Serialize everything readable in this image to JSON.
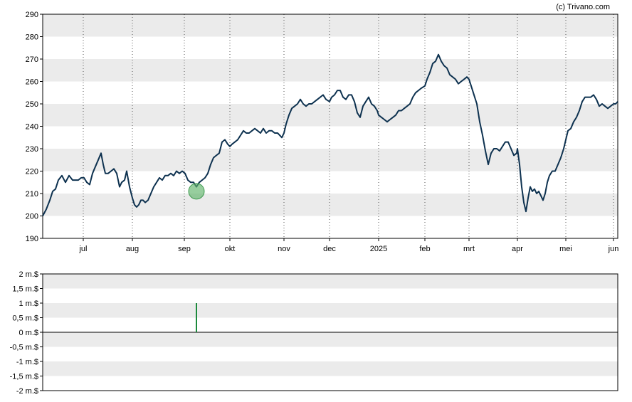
{
  "credit": "(c) Trivano.com",
  "colors": {
    "band": "#ebebeb",
    "price_line": "#0e3250",
    "marker_fill": "#5fb36a",
    "volume_bar": "#1c8a3c",
    "axis": "#000000",
    "vgrid": "#555555"
  },
  "chart_data": [
    {
      "type": "line",
      "title": "",
      "ylim": [
        190,
        290
      ],
      "y_ticks": [
        190,
        200,
        210,
        220,
        230,
        240,
        250,
        260,
        270,
        280,
        290
      ],
      "x_ticks": [
        {
          "label": "jul",
          "t": 57
        },
        {
          "label": "aug",
          "t": 126
        },
        {
          "label": "sep",
          "t": 199
        },
        {
          "label": "okt",
          "t": 263
        },
        {
          "label": "nov",
          "t": 339
        },
        {
          "label": "dec",
          "t": 403
        },
        {
          "label": "2025",
          "t": 472
        },
        {
          "label": "feb",
          "t": 537
        },
        {
          "label": "mrt",
          "t": 599
        },
        {
          "label": "apr",
          "t": 667
        },
        {
          "label": "mei",
          "t": 735
        },
        {
          "label": "jun",
          "t": 802
        }
      ],
      "xlim": [
        0,
        808
      ],
      "grid": true,
      "marker": {
        "t": 216,
        "value": 211
      },
      "series": [
        {
          "points": [
            [
              0,
              200
            ],
            [
              5,
              203
            ],
            [
              10,
              207
            ],
            [
              14,
              211
            ],
            [
              18,
              212
            ],
            [
              22,
              216
            ],
            [
              27,
              218
            ],
            [
              32,
              215
            ],
            [
              37,
              218
            ],
            [
              42,
              216
            ],
            [
              46,
              216
            ],
            [
              50,
              216
            ],
            [
              54,
              217
            ],
            [
              58,
              217
            ],
            [
              62,
              215
            ],
            [
              66,
              214
            ],
            [
              70,
              219
            ],
            [
              74,
              222
            ],
            [
              78,
              225
            ],
            [
              82,
              228
            ],
            [
              85,
              223
            ],
            [
              88,
              219
            ],
            [
              92,
              219
            ],
            [
              96,
              220
            ],
            [
              100,
              221
            ],
            [
              104,
              219
            ],
            [
              108,
              213
            ],
            [
              111,
              215
            ],
            [
              115,
              216
            ],
            [
              118,
              220
            ],
            [
              122,
              213
            ],
            [
              126,
              208
            ],
            [
              129,
              205
            ],
            [
              132,
              204
            ],
            [
              135,
              205
            ],
            [
              138,
              207
            ],
            [
              141,
              207
            ],
            [
              144,
              206
            ],
            [
              148,
              207
            ],
            [
              152,
              210
            ],
            [
              156,
              213
            ],
            [
              160,
              215
            ],
            [
              164,
              217
            ],
            [
              168,
              216
            ],
            [
              172,
              218
            ],
            [
              176,
              218
            ],
            [
              180,
              219
            ],
            [
              184,
              218
            ],
            [
              188,
              220
            ],
            [
              192,
              219
            ],
            [
              196,
              220
            ],
            [
              200,
              219
            ],
            [
              204,
              216
            ],
            [
              208,
              215
            ],
            [
              212,
              215
            ],
            [
              216,
              213
            ],
            [
              220,
              215
            ],
            [
              224,
              216
            ],
            [
              228,
              217
            ],
            [
              232,
              219
            ],
            [
              236,
              223
            ],
            [
              240,
              226
            ],
            [
              244,
              227
            ],
            [
              248,
              228
            ],
            [
              252,
              233
            ],
            [
              256,
              234
            ],
            [
              260,
              232
            ],
            [
              263,
              231
            ],
            [
              266,
              232
            ],
            [
              270,
              233
            ],
            [
              274,
              234
            ],
            [
              278,
              236
            ],
            [
              282,
              238
            ],
            [
              286,
              237
            ],
            [
              290,
              237
            ],
            [
              294,
              238
            ],
            [
              298,
              239
            ],
            [
              302,
              238
            ],
            [
              306,
              237
            ],
            [
              310,
              239
            ],
            [
              314,
              237
            ],
            [
              318,
              238
            ],
            [
              322,
              238
            ],
            [
              326,
              237
            ],
            [
              330,
              237
            ],
            [
              333,
              236
            ],
            [
              336,
              235
            ],
            [
              339,
              237
            ],
            [
              342,
              241
            ],
            [
              346,
              245
            ],
            [
              350,
              248
            ],
            [
              354,
              249
            ],
            [
              358,
              250
            ],
            [
              362,
              252
            ],
            [
              366,
              250
            ],
            [
              370,
              249
            ],
            [
              374,
              250
            ],
            [
              378,
              250
            ],
            [
              382,
              251
            ],
            [
              386,
              252
            ],
            [
              390,
              253
            ],
            [
              394,
              254
            ],
            [
              398,
              252
            ],
            [
              403,
              251
            ],
            [
              406,
              253
            ],
            [
              410,
              254
            ],
            [
              414,
              256
            ],
            [
              418,
              256
            ],
            [
              422,
              253
            ],
            [
              426,
              252
            ],
            [
              430,
              254
            ],
            [
              434,
              254
            ],
            [
              438,
              251
            ],
            [
              442,
              246
            ],
            [
              446,
              244
            ],
            [
              450,
              249
            ],
            [
              454,
              251
            ],
            [
              458,
              253
            ],
            [
              462,
              250
            ],
            [
              466,
              249
            ],
            [
              470,
              247
            ],
            [
              472,
              245
            ],
            [
              476,
              244
            ],
            [
              480,
              243
            ],
            [
              484,
              242
            ],
            [
              488,
              243
            ],
            [
              492,
              244
            ],
            [
              496,
              245
            ],
            [
              500,
              247
            ],
            [
              504,
              247
            ],
            [
              508,
              248
            ],
            [
              512,
              249
            ],
            [
              516,
              250
            ],
            [
              520,
              253
            ],
            [
              524,
              255
            ],
            [
              528,
              256
            ],
            [
              532,
              257
            ],
            [
              537,
              258
            ],
            [
              540,
              261
            ],
            [
              544,
              264
            ],
            [
              548,
              268
            ],
            [
              552,
              269
            ],
            [
              556,
              272
            ],
            [
              560,
              269
            ],
            [
              564,
              267
            ],
            [
              568,
              266
            ],
            [
              572,
              263
            ],
            [
              576,
              262
            ],
            [
              580,
              261
            ],
            [
              584,
              259
            ],
            [
              588,
              260
            ],
            [
              592,
              261
            ],
            [
              596,
              262
            ],
            [
              599,
              261
            ],
            [
              602,
              258
            ],
            [
              606,
              254
            ],
            [
              610,
              250
            ],
            [
              614,
              242
            ],
            [
              618,
              236
            ],
            [
              622,
              229
            ],
            [
              626,
              223
            ],
            [
              630,
              228
            ],
            [
              634,
              230
            ],
            [
              638,
              230
            ],
            [
              642,
              229
            ],
            [
              646,
              231
            ],
            [
              650,
              233
            ],
            [
              654,
              233
            ],
            [
              658,
              230
            ],
            [
              662,
              227
            ],
            [
              666,
              228
            ],
            [
              667,
              230
            ],
            [
              670,
              223
            ],
            [
              673,
              213
            ],
            [
              676,
              206
            ],
            [
              679,
              202
            ],
            [
              682,
              208
            ],
            [
              685,
              213
            ],
            [
              688,
              211
            ],
            [
              691,
              212
            ],
            [
              694,
              210
            ],
            [
              697,
              211
            ],
            [
              700,
              209
            ],
            [
              703,
              207
            ],
            [
              706,
              210
            ],
            [
              709,
              215
            ],
            [
              712,
              218
            ],
            [
              716,
              220
            ],
            [
              720,
              220
            ],
            [
              724,
              223
            ],
            [
              728,
              226
            ],
            [
              732,
              230
            ],
            [
              735,
              234
            ],
            [
              738,
              238
            ],
            [
              742,
              239
            ],
            [
              746,
              242
            ],
            [
              750,
              244
            ],
            [
              754,
              247
            ],
            [
              758,
              251
            ],
            [
              762,
              253
            ],
            [
              766,
              253
            ],
            [
              770,
              253
            ],
            [
              774,
              254
            ],
            [
              778,
              252
            ],
            [
              782,
              249
            ],
            [
              786,
              250
            ],
            [
              790,
              249
            ],
            [
              794,
              248
            ],
            [
              798,
              249
            ],
            [
              802,
              250
            ],
            [
              805,
              250
            ],
            [
              808,
              251
            ]
          ]
        }
      ]
    },
    {
      "type": "bar",
      "title": "",
      "ylim": [
        -2,
        2
      ],
      "y_ticks": [
        {
          "value": 2,
          "label": "2 m.$"
        },
        {
          "value": 1.5,
          "label": "1,5 m.$"
        },
        {
          "value": 1,
          "label": "1 m.$"
        },
        {
          "value": 0.5,
          "label": "0,5 m.$"
        },
        {
          "value": 0,
          "label": "0 m.$"
        },
        {
          "value": -0.5,
          "label": "-0,5 m.$"
        },
        {
          "value": -1,
          "label": "-1 m.$"
        },
        {
          "value": -1.5,
          "label": "-1,5 m.$"
        },
        {
          "value": -2,
          "label": "-2 m.$"
        }
      ],
      "bars": [
        {
          "t": 216,
          "value": 1.0
        }
      ]
    }
  ]
}
